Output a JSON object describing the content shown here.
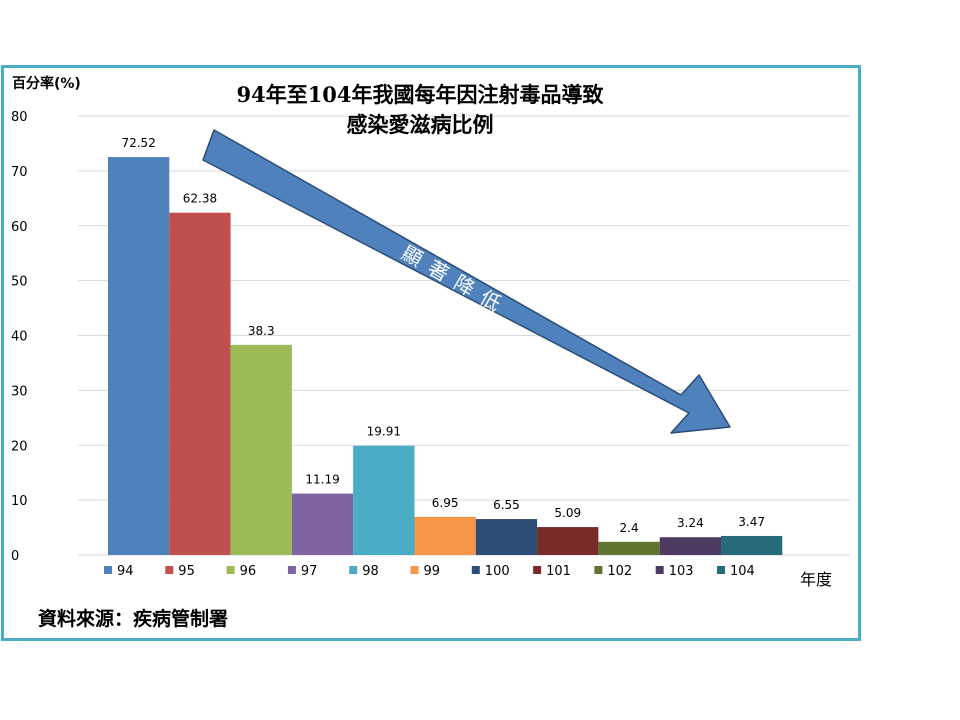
{
  "chart_data": {
    "type": "bar",
    "title_lines": [
      "94年至104年我國每年因注射毒品導致",
      "感染愛滋病比例"
    ],
    "ylabel": "百分率(%)",
    "xlabel": "年度",
    "ylim": [
      0,
      80
    ],
    "yticks": [
      0,
      10,
      20,
      30,
      40,
      50,
      60,
      70,
      80
    ],
    "grid": true,
    "legend_position": "bottom",
    "series": [
      {
        "name": "94",
        "value": 72.52,
        "label": "72.52",
        "color": "#4f81bd"
      },
      {
        "name": "95",
        "value": 62.38,
        "label": "62.38",
        "color": "#c0504d"
      },
      {
        "name": "96",
        "value": 38.3,
        "label": "38.3",
        "color": "#9bbb59"
      },
      {
        "name": "97",
        "value": 11.19,
        "label": "11.19",
        "color": "#8064a2"
      },
      {
        "name": "98",
        "value": 19.91,
        "label": "19.91",
        "color": "#4bacc6"
      },
      {
        "name": "99",
        "value": 6.95,
        "label": "6.95",
        "color": "#f79646"
      },
      {
        "name": "100",
        "value": 6.55,
        "label": "6.55",
        "color": "#2c4d75"
      },
      {
        "name": "101",
        "value": 5.09,
        "label": "5.09",
        "color": "#772c2a"
      },
      {
        "name": "102",
        "value": 2.4,
        "label": "2.4",
        "color": "#5f7530"
      },
      {
        "name": "103",
        "value": 3.24,
        "label": "3.24",
        "color": "#4d3b62"
      },
      {
        "name": "104",
        "value": 3.47,
        "label": "3.47",
        "color": "#276a7c"
      }
    ],
    "annotation": {
      "text": "顯著降低",
      "direction": "down-right",
      "color": "#4f81bd"
    }
  },
  "source": "資料來源：疾病管制署",
  "colors": {
    "frame": "#4bacc6",
    "grid": "#d9d9d9"
  }
}
